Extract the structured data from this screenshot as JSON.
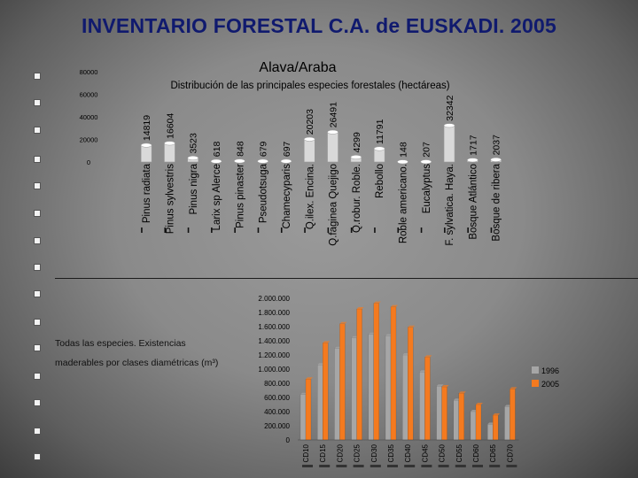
{
  "slide": {
    "title": "INVENTARIO FORESTAL C.A. de EUSKADI. 2005",
    "chart2_caption_line1": "Todas las especies. Existencias",
    "chart2_caption_line2": "maderables por clases diamétricas (m³)"
  },
  "chart_data": [
    {
      "type": "bar",
      "title": "Alava/Araba",
      "subtitle": "Distribución de las principales especies forestales (hectáreas)",
      "xlabel": "",
      "ylabel": "",
      "ylim": [
        0,
        80000
      ],
      "yticks": [
        "0",
        "20000",
        "40000",
        "60000",
        "80000"
      ],
      "categories": [
        "Pinus radiata",
        "Pinus sylvestris",
        "Pinus nigra",
        "Larix sp Alerce",
        "Pinus pinaster",
        "Pseudotsuga",
        "Chamecyparis",
        "Q.ilex. Encina.",
        "Q.faginea Quejigo",
        "Q.robur. Roble.",
        "Rebollo",
        "Roble americano.",
        "Eucalyptus",
        "F. sylvatica. Haya.",
        "Bosque Atlántico",
        "Bosque de ribera"
      ],
      "values": [
        14819,
        16604,
        3523,
        618,
        848,
        679,
        697,
        20203,
        26491,
        4299,
        11791,
        148,
        207,
        32342,
        1717,
        2037
      ],
      "data_labels": [
        "14819",
        "16604",
        "3523",
        "618",
        "848",
        "679",
        "697",
        "20203",
        "26491",
        "4299",
        "11791",
        "148",
        "207",
        "32342",
        "1717",
        "2037"
      ],
      "bar_color": "#d9d9d9",
      "grid": false
    },
    {
      "type": "bar",
      "title": "Todas las especies. Existencias maderables por clases diamétricas (m³)",
      "xlabel": "",
      "ylabel": "",
      "ylim": [
        0,
        2000000
      ],
      "yticks": [
        "0",
        "200.000",
        "400.000",
        "600.000",
        "800.000",
        "1.000.000",
        "1.200.000",
        "1.400.000",
        "1.600.000",
        "1.800.000",
        "2.000.000"
      ],
      "categories": [
        "CD10",
        "CD15",
        "CD20",
        "CD25",
        "CD30",
        "CD35",
        "CD40",
        "CD45",
        "CD50",
        "CD55",
        "CD60",
        "CD65",
        "CD70"
      ],
      "series": [
        {
          "name": "1996",
          "color": "#a6a6a6",
          "values": [
            640000,
            1060000,
            1290000,
            1440000,
            1490000,
            1470000,
            1200000,
            960000,
            760000,
            560000,
            400000,
            220000,
            470000
          ]
        },
        {
          "name": "2005",
          "color": "#f47a1f",
          "values": [
            860000,
            1370000,
            1640000,
            1850000,
            1930000,
            1880000,
            1590000,
            1170000,
            750000,
            660000,
            500000,
            350000,
            720000
          ]
        }
      ],
      "legend_position": "right",
      "grid": false
    }
  ]
}
